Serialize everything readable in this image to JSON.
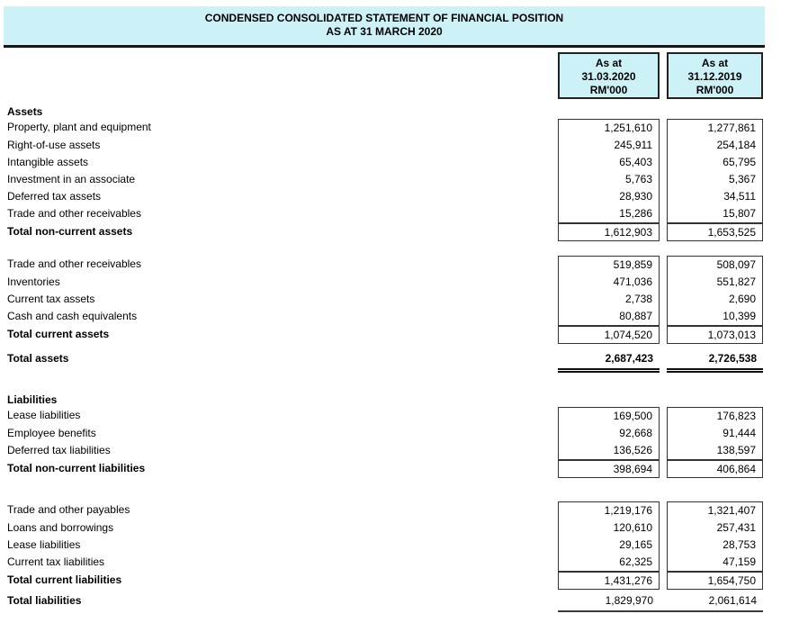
{
  "page": {
    "title_line1": "CONDENSED CONSOLIDATED STATEMENT OF FINANCIAL POSITION",
    "title_line2": "AS AT 31 MARCH 2020"
  },
  "colors": {
    "band_background": "#CCF2F8",
    "box_border": "#333333",
    "rule": "#161616"
  },
  "column_headers": [
    {
      "prefix": "As at",
      "date": "31.03.2020",
      "unit": "RM'000"
    },
    {
      "prefix": "As at",
      "date": "31.12.2019",
      "unit": "RM'000"
    }
  ],
  "assets": {
    "heading": "Assets",
    "non_current": {
      "rows": [
        {
          "label": "Property, plant and equipment",
          "v2020": "1,251,610",
          "v2019": "1,277,861"
        },
        {
          "label": "Right-of-use assets",
          "v2020": "245,911",
          "v2019": "254,184"
        },
        {
          "label": "Intangible assets",
          "v2020": "65,403",
          "v2019": "65,795"
        },
        {
          "label": "Investment in an associate",
          "v2020": "5,763",
          "v2019": "5,367"
        },
        {
          "label": "Deferred tax assets",
          "v2020": "28,930",
          "v2019": "34,511"
        },
        {
          "label": "Trade and other receivables",
          "v2020": "15,286",
          "v2019": "15,807"
        }
      ],
      "total": {
        "label": "Total non-current assets",
        "v2020": "1,612,903",
        "v2019": "1,653,525"
      }
    },
    "current": {
      "rows": [
        {
          "label": "Trade and other receivables",
          "v2020": "519,859",
          "v2019": "508,097"
        },
        {
          "label": "Inventories",
          "v2020": "471,036",
          "v2019": "551,827"
        },
        {
          "label": "Current tax assets",
          "v2020": "2,738",
          "v2019": "2,690"
        },
        {
          "label": "Cash and cash equivalents",
          "v2020": "80,887",
          "v2019": "10,399"
        }
      ],
      "total": {
        "label": "Total current assets",
        "v2020": "1,074,520",
        "v2019": "1,073,013"
      }
    },
    "total_assets": {
      "label": "Total assets",
      "v2020": "2,687,423",
      "v2019": "2,726,538"
    }
  },
  "liabilities": {
    "heading": "Liabilities",
    "non_current": {
      "rows": [
        {
          "label": "Lease liabilities",
          "v2020": "169,500",
          "v2019": "176,823"
        },
        {
          "label": "Employee benefits",
          "v2020": "92,668",
          "v2019": "91,444"
        },
        {
          "label": "Deferred tax liabilities",
          "v2020": "136,526",
          "v2019": "138,597"
        }
      ],
      "total": {
        "label": "Total non-current liabilities",
        "v2020": "398,694",
        "v2019": "406,864"
      }
    },
    "current": {
      "rows": [
        {
          "label": "Trade and other payables",
          "v2020": "1,219,176",
          "v2019": "1,321,407"
        },
        {
          "label": "Loans and borrowings",
          "v2020": "120,610",
          "v2019": "257,431"
        },
        {
          "label": "Lease liabilities",
          "v2020": "29,165",
          "v2019": "28,753"
        },
        {
          "label": "Current tax liabilities",
          "v2020": "62,325",
          "v2019": "47,159"
        }
      ],
      "total": {
        "label": "Total current liabilities",
        "v2020": "1,431,276",
        "v2019": "1,654,750"
      }
    },
    "total_liabilities": {
      "label": "Total liabilities",
      "v2020": "1,829,970",
      "v2019": "2,061,614"
    }
  }
}
